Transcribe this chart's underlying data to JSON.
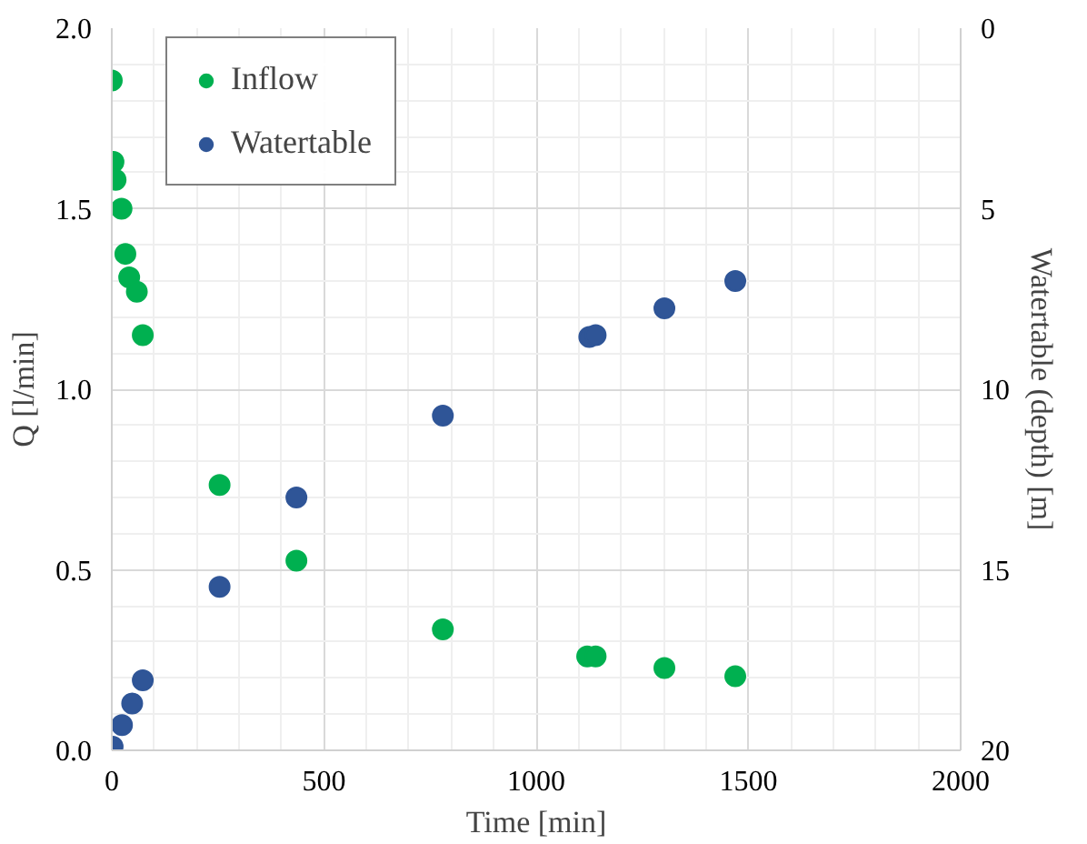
{
  "chart_data": {
    "type": "scatter",
    "xlabel": "Time [min]",
    "ylabel": "Q [l/min]",
    "y2label": "Watertable (depth) [m]",
    "xlim": [
      0,
      2000
    ],
    "xticks": [
      0,
      500,
      1000,
      1500,
      2000
    ],
    "ylim": [
      0,
      2
    ],
    "yticks": [
      {
        "value": 0,
        "label": "0.0"
      },
      {
        "value": 0.5,
        "label": "0.5"
      },
      {
        "value": 1,
        "label": "1.0"
      },
      {
        "value": 1.5,
        "label": "1.5"
      },
      {
        "value": 2,
        "label": "2.0"
      }
    ],
    "y2lim": [
      20,
      0
    ],
    "y2ticks": [
      0,
      5,
      10,
      15,
      20
    ],
    "grid": true,
    "legend": "top left",
    "marker": "circle",
    "series": [
      {
        "name": "Inflow",
        "color": "#00b050",
        "x": [
          0,
          4,
          9,
          23,
          32,
          41,
          59,
          73,
          254,
          435,
          780,
          1120,
          1140,
          1302,
          1469
        ],
        "values": [
          1.855,
          1.63,
          1.58,
          1.5,
          1.375,
          1.31,
          1.27,
          1.15,
          0.735,
          0.525,
          0.335,
          0.26,
          0.26,
          0.228,
          0.205
        ]
      },
      {
        "name": "Watertable",
        "color": "#2f5597",
        "axis": "y2",
        "x": [
          2,
          24,
          48,
          73,
          254,
          435,
          780,
          1125,
          1140,
          1302,
          1469
        ],
        "values": [
          19.9,
          19.3,
          18.7,
          18.06,
          15.47,
          13.0,
          10.73,
          8.55,
          8.5,
          7.76,
          7.0
        ]
      }
    ]
  }
}
